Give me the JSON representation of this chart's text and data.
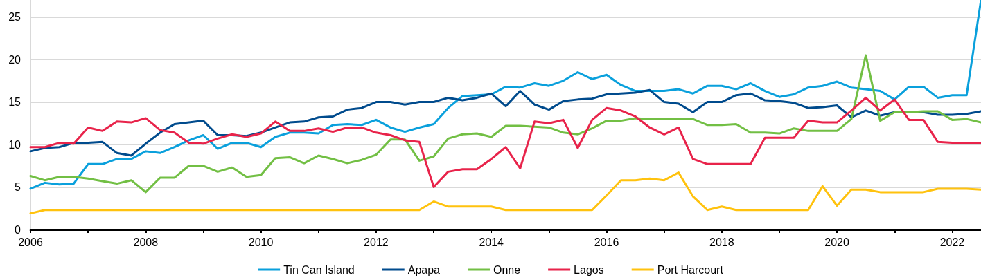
{
  "chart_data": {
    "type": "line",
    "x": [
      2006,
      2006.25,
      2006.5,
      2006.75,
      2007,
      2007.25,
      2007.5,
      2007.75,
      2008,
      2008.25,
      2008.5,
      2008.75,
      2009,
      2009.25,
      2009.5,
      2009.75,
      2010,
      2010.25,
      2010.5,
      2010.75,
      2011,
      2011.25,
      2011.5,
      2011.75,
      2012,
      2012.25,
      2012.5,
      2012.75,
      2013,
      2013.25,
      2013.5,
      2013.75,
      2014,
      2014.25,
      2014.5,
      2014.75,
      2015,
      2015.25,
      2015.5,
      2015.75,
      2016,
      2016.25,
      2016.5,
      2016.75,
      2017,
      2017.25,
      2017.5,
      2017.75,
      2018,
      2018.25,
      2018.5,
      2018.75,
      2019,
      2019.25,
      2019.5,
      2019.75,
      2020,
      2020.25,
      2020.5,
      2020.75,
      2021,
      2021.25,
      2021.5,
      2021.75,
      2022,
      2022.25,
      2022.5
    ],
    "series": [
      {
        "name": "Tin Can Island",
        "color": "#0aa0dc",
        "values": [
          4.8,
          5.5,
          5.3,
          5.4,
          7.7,
          7.7,
          8.3,
          8.3,
          9.2,
          9.0,
          9.7,
          10.5,
          11.1,
          9.5,
          10.2,
          10.2,
          9.7,
          10.9,
          11.4,
          11.4,
          11.3,
          12.3,
          12.4,
          12.3,
          12.9,
          12.0,
          11.5,
          12.0,
          12.4,
          14.3,
          15.7,
          15.8,
          15.9,
          16.8,
          16.7,
          17.2,
          16.9,
          17.5,
          18.5,
          17.7,
          18.2,
          17.0,
          16.3,
          16.3,
          16.3,
          16.5,
          16.0,
          16.9,
          16.9,
          16.5,
          17.2,
          16.3,
          15.6,
          15.9,
          16.7,
          16.9,
          17.4,
          16.7,
          16.5,
          16.3,
          15.3,
          16.8,
          16.8,
          15.5,
          15.8,
          15.8,
          27
        ]
      },
      {
        "name": "Apapa",
        "color": "#004b8d",
        "values": [
          9.2,
          9.6,
          9.7,
          10.2,
          10.2,
          10.3,
          9.0,
          8.7,
          10.1,
          11.4,
          12.4,
          12.6,
          12.8,
          11.1,
          11.1,
          11.0,
          11.4,
          12.0,
          12.6,
          12.7,
          13.2,
          13.3,
          14.1,
          14.3,
          15.0,
          15.0,
          14.7,
          15.0,
          15.0,
          15.5,
          15.2,
          15.5,
          16.0,
          14.5,
          16.3,
          14.7,
          14.1,
          15.1,
          15.3,
          15.4,
          15.9,
          16.0,
          16.1,
          16.4,
          15.0,
          14.8,
          13.8,
          15.0,
          15.0,
          15.8,
          16.0,
          15.2,
          15.1,
          14.9,
          14.3,
          14.4,
          14.6,
          13.2,
          14.0,
          13.4,
          13.8,
          13.8,
          13.8,
          13.5,
          13.5,
          13.6,
          13.9
        ]
      },
      {
        "name": "Onne",
        "color": "#72bf44",
        "values": [
          6.3,
          5.8,
          6.2,
          6.2,
          6.0,
          5.7,
          5.4,
          5.8,
          4.4,
          6.1,
          6.1,
          7.5,
          7.5,
          6.8,
          7.3,
          6.2,
          6.4,
          8.4,
          8.5,
          7.8,
          8.7,
          8.3,
          7.8,
          8.2,
          8.8,
          10.6,
          10.6,
          8.1,
          8.6,
          10.7,
          11.2,
          11.3,
          10.9,
          12.2,
          12.2,
          12.1,
          12.0,
          11.4,
          11.2,
          11.9,
          12.8,
          12.8,
          13.1,
          13.0,
          13.0,
          13.0,
          13.0,
          12.3,
          12.3,
          12.4,
          11.4,
          11.4,
          11.3,
          11.9,
          11.6,
          11.6,
          11.6,
          13.0,
          20.5,
          12.8,
          13.8,
          13.8,
          13.9,
          13.9,
          12.9,
          13.0,
          12.6
        ]
      },
      {
        "name": "Lagos",
        "color": "#e8234a",
        "values": [
          9.7,
          9.7,
          10.2,
          10.1,
          12.0,
          11.6,
          12.7,
          12.6,
          13.1,
          11.7,
          11.4,
          10.2,
          10.1,
          10.7,
          11.2,
          10.9,
          11.3,
          12.7,
          11.6,
          11.6,
          11.9,
          11.5,
          12.0,
          12.0,
          11.4,
          11.1,
          10.5,
          10.3,
          5.0,
          6.8,
          7.1,
          7.1,
          8.3,
          9.7,
          7.2,
          12.7,
          12.5,
          12.9,
          9.6,
          12.9,
          14.3,
          14.0,
          13.3,
          12.0,
          11.2,
          12.0,
          8.3,
          7.7,
          7.7,
          7.7,
          7.7,
          10.8,
          10.8,
          10.8,
          12.8,
          12.6,
          12.6,
          14.0,
          15.5,
          14.0,
          15.3,
          12.9,
          12.9,
          10.3,
          10.2,
          10.2,
          10.2
        ]
      },
      {
        "name": "Port Harcourt",
        "color": "#ffc20e",
        "values": [
          1.9,
          2.3,
          2.3,
          2.3,
          2.3,
          2.3,
          2.3,
          2.3,
          2.3,
          2.3,
          2.3,
          2.3,
          2.3,
          2.3,
          2.3,
          2.3,
          2.3,
          2.3,
          2.3,
          2.3,
          2.3,
          2.3,
          2.3,
          2.3,
          2.3,
          2.3,
          2.3,
          2.3,
          3.3,
          2.7,
          2.7,
          2.7,
          2.7,
          2.3,
          2.3,
          2.3,
          2.3,
          2.3,
          2.3,
          2.3,
          4.0,
          5.8,
          5.8,
          6.0,
          5.8,
          6.7,
          3.9,
          2.3,
          2.7,
          2.3,
          2.3,
          2.3,
          2.3,
          2.3,
          2.3,
          5.1,
          2.8,
          4.7,
          4.7,
          4.4,
          4.4,
          4.4,
          4.4,
          4.8,
          4.8,
          4.8,
          4.7
        ]
      }
    ],
    "xlim": [
      2006,
      2022.5
    ],
    "xticks": [
      2006,
      {
        "value": 2007,
        "label": null
      },
      2008,
      {
        "value": 2009,
        "label": null
      },
      2010,
      {
        "value": 2011,
        "label": null
      },
      2012,
      {
        "value": 2013,
        "label": null
      },
      2014,
      {
        "value": 2015,
        "label": null
      },
      2016,
      {
        "value": 2017,
        "label": null
      },
      2018,
      {
        "value": 2019,
        "label": null
      },
      2020,
      {
        "value": 2021,
        "label": null
      },
      2022
    ],
    "ylim": [
      0,
      27
    ],
    "yticks": [
      0,
      5,
      10,
      15,
      20,
      25
    ],
    "grid": "y",
    "legend": "bottom",
    "marker": "none",
    "line_style": "solid"
  }
}
